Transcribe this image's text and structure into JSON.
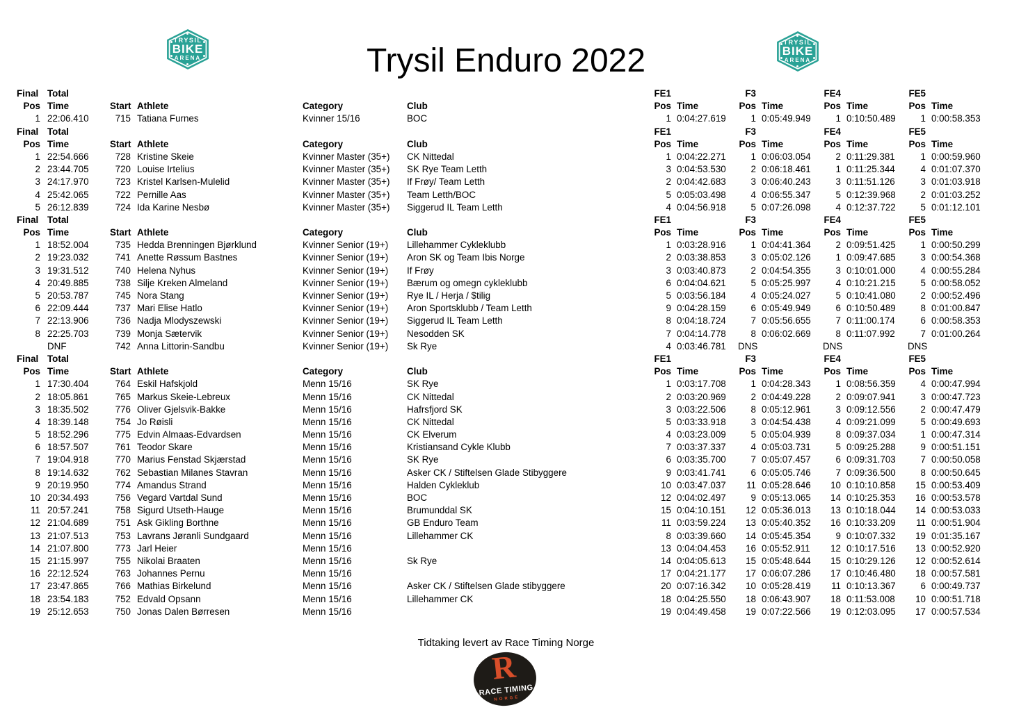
{
  "title": "Trysil Enduro 2022",
  "brand_logo": {
    "line1": "TRYSIL",
    "line2": "BIKE",
    "line3": "ARENA",
    "color": "#2aa296"
  },
  "headers": {
    "final": "Final",
    "total": "Total",
    "pos": "Pos",
    "time": "Time",
    "start": "Start",
    "athlete": "Athlete",
    "category": "Category",
    "club": "Club",
    "stages": [
      "FE1",
      "F3",
      "FE4",
      "FE5"
    ]
  },
  "sections": [
    {
      "category": "Kvinner 15/16",
      "rows": [
        [
          "1",
          "22:06.410",
          "715",
          "Tatiana Furnes",
          "Kvinner 15/16",
          "BOC",
          "1",
          "0:04:27.619",
          "1",
          "0:05:49.949",
          "1",
          "0:10:50.489",
          "1",
          "0:00:58.353"
        ]
      ]
    },
    {
      "category": "Kvinner Master (35+)",
      "rows": [
        [
          "1",
          "22:54.666",
          "728",
          "Kristine Skeie",
          "Kvinner Master (35+)",
          "CK Nittedal",
          "1",
          "0:04:22.271",
          "1",
          "0:06:03.054",
          "2",
          "0:11:29.381",
          "1",
          "0:00:59.960"
        ],
        [
          "2",
          "23:44.705",
          "720",
          "Louise Irtelius",
          "Kvinner Master (35+)",
          "SK Rye Team Letth",
          "3",
          "0:04:53.530",
          "2",
          "0:06:18.461",
          "1",
          "0:11:25.344",
          "4",
          "0:01:07.370"
        ],
        [
          "3",
          "24:17.970",
          "723",
          "Kristel Karlsen-Mulelid",
          "Kvinner Master (35+)",
          "If Frøy/ Team Letth",
          "2",
          "0:04:42.683",
          "3",
          "0:06:40.243",
          "3",
          "0:11:51.126",
          "3",
          "0:01:03.918"
        ],
        [
          "4",
          "25:42.065",
          "722",
          "Pernille Aas",
          "Kvinner Master (35+)",
          "Team Letth/BOC",
          "5",
          "0:05:03.498",
          "4",
          "0:06:55.347",
          "5",
          "0:12:39.968",
          "2",
          "0:01:03.252"
        ],
        [
          "5",
          "26:12.839",
          "724",
          "Ida Karine Nesbø",
          "Kvinner Master (35+)",
          "Siggerud IL Team Letth",
          "4",
          "0:04:56.918",
          "5",
          "0:07:26.098",
          "4",
          "0:12:37.722",
          "5",
          "0:01:12.101"
        ]
      ]
    },
    {
      "category": "Kvinner Senior (19+)",
      "rows": [
        [
          "1",
          "18:52.004",
          "735",
          "Hedda Brenningen Bjørklund",
          "Kvinner Senior (19+)",
          "Lillehammer Cykleklubb",
          "1",
          "0:03:28.916",
          "1",
          "0:04:41.364",
          "2",
          "0:09:51.425",
          "1",
          "0:00:50.299"
        ],
        [
          "2",
          "19:23.032",
          "741",
          "Anette Røssum Bastnes",
          "Kvinner Senior (19+)",
          "Aron SK og Team Ibis Norge",
          "2",
          "0:03:38.853",
          "3",
          "0:05:02.126",
          "1",
          "0:09:47.685",
          "3",
          "0:00:54.368"
        ],
        [
          "3",
          "19:31.512",
          "740",
          "Helena Nyhus",
          "Kvinner Senior (19+)",
          "If Frøy",
          "3",
          "0:03:40.873",
          "2",
          "0:04:54.355",
          "3",
          "0:10:01.000",
          "4",
          "0:00:55.284"
        ],
        [
          "4",
          "20:49.885",
          "738",
          "Silje Kreken Almeland",
          "Kvinner Senior (19+)",
          "Bærum og omegn cykleklubb",
          "6",
          "0:04:04.621",
          "5",
          "0:05:25.997",
          "4",
          "0:10:21.215",
          "5",
          "0:00:58.052"
        ],
        [
          "5",
          "20:53.787",
          "745",
          "Nora Stang",
          "Kvinner Senior (19+)",
          "Rye IL / Herja / $tilig",
          "5",
          "0:03:56.184",
          "4",
          "0:05:24.027",
          "5",
          "0:10:41.080",
          "2",
          "0:00:52.496"
        ],
        [
          "6",
          "22:09.444",
          "737",
          "Mari Elise Hatlo",
          "Kvinner Senior (19+)",
          "Aron Sportsklubb / Team Letth",
          "9",
          "0:04:28.159",
          "6",
          "0:05:49.949",
          "6",
          "0:10:50.489",
          "8",
          "0:01:00.847"
        ],
        [
          "7",
          "22:13.906",
          "736",
          "Nadja Mlodyszewski",
          "Kvinner Senior (19+)",
          "Siggerud IL Team Letth",
          "8",
          "0:04:18.724",
          "7",
          "0:05:56.655",
          "7",
          "0:11:00.174",
          "6",
          "0:00:58.353"
        ],
        [
          "8",
          "22:25.703",
          "739",
          "Monja Sætervik",
          "Kvinner Senior (19+)",
          "Nesodden SK",
          "7",
          "0:04:14.778",
          "8",
          "0:06:02.669",
          "8",
          "0:11:07.992",
          "7",
          "0:01:00.264"
        ],
        [
          "",
          "DNF",
          "742",
          "Anna Littorin-Sandbu",
          "Kvinner Senior (19+)",
          "Sk Rye",
          "4",
          "0:03:46.781",
          "DNS",
          "",
          "DNS",
          "",
          "DNS",
          ""
        ]
      ]
    },
    {
      "category": "Menn 15/16",
      "rows": [
        [
          "1",
          "17:30.404",
          "764",
          "Eskil Hafskjold",
          "Menn 15/16",
          "SK Rye",
          "1",
          "0:03:17.708",
          "1",
          "0:04:28.343",
          "1",
          "0:08:56.359",
          "4",
          "0:00:47.994"
        ],
        [
          "2",
          "18:05.861",
          "765",
          "Markus Skeie-Lebreux",
          "Menn 15/16",
          "CK Nittedal",
          "2",
          "0:03:20.969",
          "2",
          "0:04:49.228",
          "2",
          "0:09:07.941",
          "3",
          "0:00:47.723"
        ],
        [
          "3",
          "18:35.502",
          "776",
          "Oliver Gjelsvik-Bakke",
          "Menn 15/16",
          "Hafrsfjord SK",
          "3",
          "0:03:22.506",
          "8",
          "0:05:12.961",
          "3",
          "0:09:12.556",
          "2",
          "0:00:47.479"
        ],
        [
          "4",
          "18:39.148",
          "754",
          "Jo Røisli",
          "Menn 15/16",
          "CK Nittedal",
          "5",
          "0:03:33.918",
          "3",
          "0:04:54.438",
          "4",
          "0:09:21.099",
          "5",
          "0:00:49.693"
        ],
        [
          "5",
          "18:52.296",
          "775",
          "Edvin Almaas-Edvardsen",
          "Menn 15/16",
          "CK Elverum",
          "4",
          "0:03:23.009",
          "5",
          "0:05:04.939",
          "8",
          "0:09:37.034",
          "1",
          "0:00:47.314"
        ],
        [
          "6",
          "18:57.507",
          "761",
          "Teodor Skare",
          "Menn 15/16",
          "Kristiansand Cykle Klubb",
          "7",
          "0:03:37.337",
          "4",
          "0:05:03.731",
          "5",
          "0:09:25.288",
          "9",
          "0:00:51.151"
        ],
        [
          "7",
          "19:04.918",
          "770",
          "Marius Fenstad Skjærstad",
          "Menn 15/16",
          "SK Rye",
          "6",
          "0:03:35.700",
          "7",
          "0:05:07.457",
          "6",
          "0:09:31.703",
          "7",
          "0:00:50.058"
        ],
        [
          "8",
          "19:14.632",
          "762",
          "Sebastian Milanes Stavran",
          "Menn 15/16",
          "Asker CK / Stiftelsen Glade Stibyggere",
          "9",
          "0:03:41.741",
          "6",
          "0:05:05.746",
          "7",
          "0:09:36.500",
          "8",
          "0:00:50.645"
        ],
        [
          "9",
          "20:19.950",
          "774",
          "Amandus Strand",
          "Menn 15/16",
          "Halden Cykleklub",
          "10",
          "0:03:47.037",
          "11",
          "0:05:28.646",
          "10",
          "0:10:10.858",
          "15",
          "0:00:53.409"
        ],
        [
          "10",
          "20:34.493",
          "756",
          "Vegard Vartdal Sund",
          "Menn 15/16",
          "BOC",
          "12",
          "0:04:02.497",
          "9",
          "0:05:13.065",
          "14",
          "0:10:25.353",
          "16",
          "0:00:53.578"
        ],
        [
          "11",
          "20:57.241",
          "758",
          "Sigurd Utseth-Hauge",
          "Menn 15/16",
          "Brumunddal SK",
          "15",
          "0:04:10.151",
          "12",
          "0:05:36.013",
          "13",
          "0:10:18.044",
          "14",
          "0:00:53.033"
        ],
        [
          "12",
          "21:04.689",
          "751",
          "Ask Gikling Borthne",
          "Menn 15/16",
          "GB Enduro Team",
          "11",
          "0:03:59.224",
          "13",
          "0:05:40.352",
          "16",
          "0:10:33.209",
          "11",
          "0:00:51.904"
        ],
        [
          "13",
          "21:07.513",
          "753",
          "Lavrans Jøranli Sundgaard",
          "Menn 15/16",
          "Lillehammer CK",
          "8",
          "0:03:39.660",
          "14",
          "0:05:45.354",
          "9",
          "0:10:07.332",
          "19",
          "0:01:35.167"
        ],
        [
          "14",
          "21:07.800",
          "773",
          "Jarl Heier",
          "Menn 15/16",
          "",
          "13",
          "0:04:04.453",
          "16",
          "0:05:52.911",
          "12",
          "0:10:17.516",
          "13",
          "0:00:52.920"
        ],
        [
          "15",
          "21:15.997",
          "755",
          "Nikolai Braaten",
          "Menn 15/16",
          "Sk Rye",
          "14",
          "0:04:05.613",
          "15",
          "0:05:48.644",
          "15",
          "0:10:29.126",
          "12",
          "0:00:52.614"
        ],
        [
          "16",
          "22:12.524",
          "763",
          "Johannes Pernu",
          "Menn 15/16",
          "",
          "17",
          "0:04:21.177",
          "17",
          "0:06:07.286",
          "17",
          "0:10:46.480",
          "18",
          "0:00:57.581"
        ],
        [
          "17",
          "23:47.865",
          "766",
          "Mathias Birkelund",
          "Menn 15/16",
          "Asker CK / Stiftelsen Glade stibyggere",
          "20",
          "0:07:16.342",
          "10",
          "0:05:28.419",
          "11",
          "0:10:13.367",
          "6",
          "0:00:49.737"
        ],
        [
          "18",
          "23:54.183",
          "752",
          "Edvald Opsann",
          "Menn 15/16",
          "Lillehammer CK",
          "18",
          "0:04:25.550",
          "18",
          "0:06:43.907",
          "18",
          "0:11:53.008",
          "10",
          "0:00:51.718"
        ],
        [
          "19",
          "25:12.653",
          "750",
          "Jonas Dalen Børresen",
          "Menn 15/16",
          "",
          "19",
          "0:04:49.458",
          "19",
          "0:07:22.566",
          "19",
          "0:12:03.095",
          "17",
          "0:00:57.534"
        ]
      ]
    }
  ],
  "footer": {
    "credit": "Tidtaking levert av Race Timing Norge",
    "logo": {
      "letter": "R",
      "name": "RACE TIMING",
      "sub": "NORGE",
      "accent": "#d84e2a",
      "bg": "#1e1b17"
    }
  }
}
